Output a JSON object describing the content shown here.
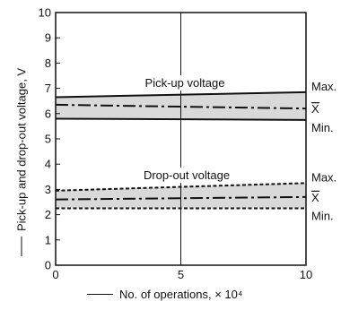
{
  "chart_data": {
    "type": "area",
    "xlabel": "No. of operations, × 10⁴",
    "ylabel": "Pick-up and drop-out voltage, V",
    "xlim": [
      0,
      10
    ],
    "ylim": [
      0,
      10
    ],
    "x_ticks": [
      "0",
      "5",
      "10"
    ],
    "y_ticks": [
      "0",
      "1",
      "2",
      "3",
      "4",
      "5",
      "6",
      "7",
      "8",
      "9",
      "10"
    ],
    "grid": "vertical line at x = 5",
    "annotations": [
      "Pick-up voltage",
      "Drop-out voltage"
    ],
    "bands": [
      {
        "name": "Pick-up voltage",
        "x": [
          0,
          10
        ],
        "max": [
          6.65,
          6.85
        ],
        "mean": [
          6.35,
          6.2
        ],
        "min": [
          5.8,
          5.75
        ],
        "fill": "#d9d9d9"
      },
      {
        "name": "Drop-out voltage",
        "x": [
          0,
          10
        ],
        "max": [
          2.95,
          3.25
        ],
        "mean": [
          2.6,
          2.7
        ],
        "min": [
          2.25,
          2.25
        ],
        "fill": "#d9d9d9"
      }
    ],
    "line_labels": {
      "max": "Max.",
      "mean": "X",
      "min": "Min."
    }
  }
}
